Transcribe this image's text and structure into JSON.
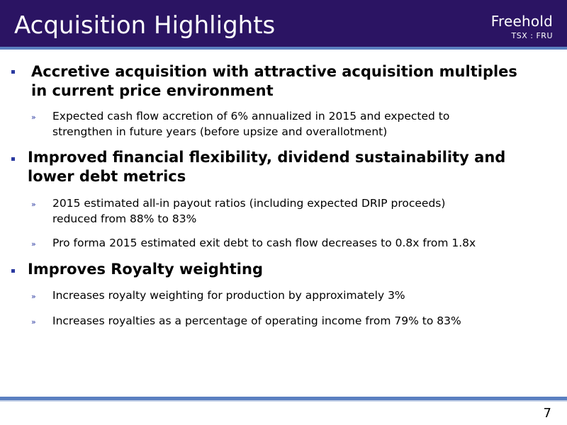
{
  "header": {
    "title": "Acquisition Highlights",
    "brand": "Freehold",
    "ticker": "TSX : FRU"
  },
  "bullets": [
    {
      "text_line1": "Accretive acquisition with attractive acquisition multiples",
      "text_line2": "in current price environment",
      "subs": [
        {
          "line1": "Expected cash flow accretion of 6% annualized in 2015 and expected to",
          "line2": "strengthen in future years (before upsize and overallotment)"
        }
      ]
    },
    {
      "text_line1": "Improved financial flexibility, dividend sustainability and",
      "text_line2": "lower debt metrics",
      "subs": [
        {
          "line1": "2015 estimated all-in payout ratios (including expected DRIP proceeds)",
          "line2": "reduced from 88% to 83%"
        },
        {
          "line1": "Pro forma 2015 estimated exit debt to cash flow decreases to 0.8x from 1.8x"
        }
      ]
    },
    {
      "text_line1": "Improves Royalty weighting",
      "subs": [
        {
          "line1": "Increases royalty weighting for production by approximately 3%"
        },
        {
          "line1": "Increases royalties as a percentage of operating income from 79% to 83%"
        }
      ]
    }
  ],
  "sub_marker": "»",
  "page_number": "7",
  "colors": {
    "header_bg": "#2b1463",
    "accent": "#5a7fc0",
    "bullet_marker": "#2b3aa0"
  }
}
